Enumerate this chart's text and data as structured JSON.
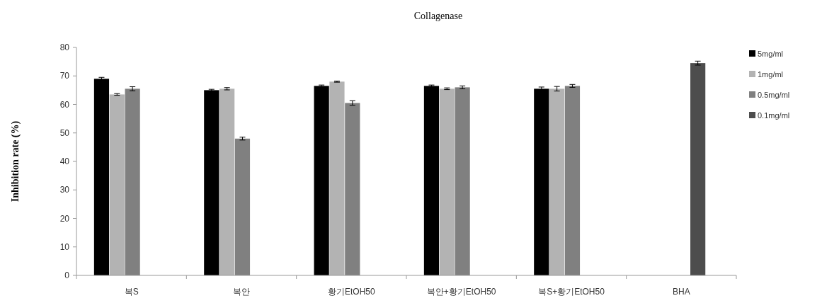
{
  "chart_data": {
    "type": "bar",
    "title": "Collagenase",
    "ylabel": "Inhibition rate (%)",
    "categories": [
      "복S",
      "복안",
      "황기EtOH50",
      "복안+황기EtOH50",
      "복S+황기EtOH50",
      "BHA"
    ],
    "series": [
      {
        "name": "5mg/ml",
        "color": "#000000",
        "values": [
          69,
          65,
          66.5,
          66.5,
          65.5,
          null
        ],
        "errors": [
          0.5,
          0.3,
          0.3,
          0.3,
          0.6,
          null
        ]
      },
      {
        "name": "1mg/ml",
        "color": "#b3b3b3",
        "values": [
          63.5,
          65.5,
          68,
          65.5,
          65.5,
          null
        ],
        "errors": [
          0.3,
          0.4,
          0.2,
          0.3,
          0.8,
          null
        ]
      },
      {
        "name": "0.5mg/ml",
        "color": "#808080",
        "values": [
          65.5,
          48,
          60.5,
          66,
          66.5,
          null
        ],
        "errors": [
          0.7,
          0.5,
          0.8,
          0.5,
          0.5,
          null
        ]
      },
      {
        "name": "0.1mg/ml",
        "color": "#4d4d4d",
        "values": [
          null,
          null,
          null,
          null,
          null,
          74.5
        ],
        "errors": [
          null,
          null,
          null,
          null,
          null,
          0.7
        ]
      }
    ],
    "ylim": [
      0,
      80
    ],
    "yticks": [
      0,
      10,
      20,
      30,
      40,
      50,
      60,
      70,
      80
    ],
    "grid": false,
    "legend": "right"
  }
}
